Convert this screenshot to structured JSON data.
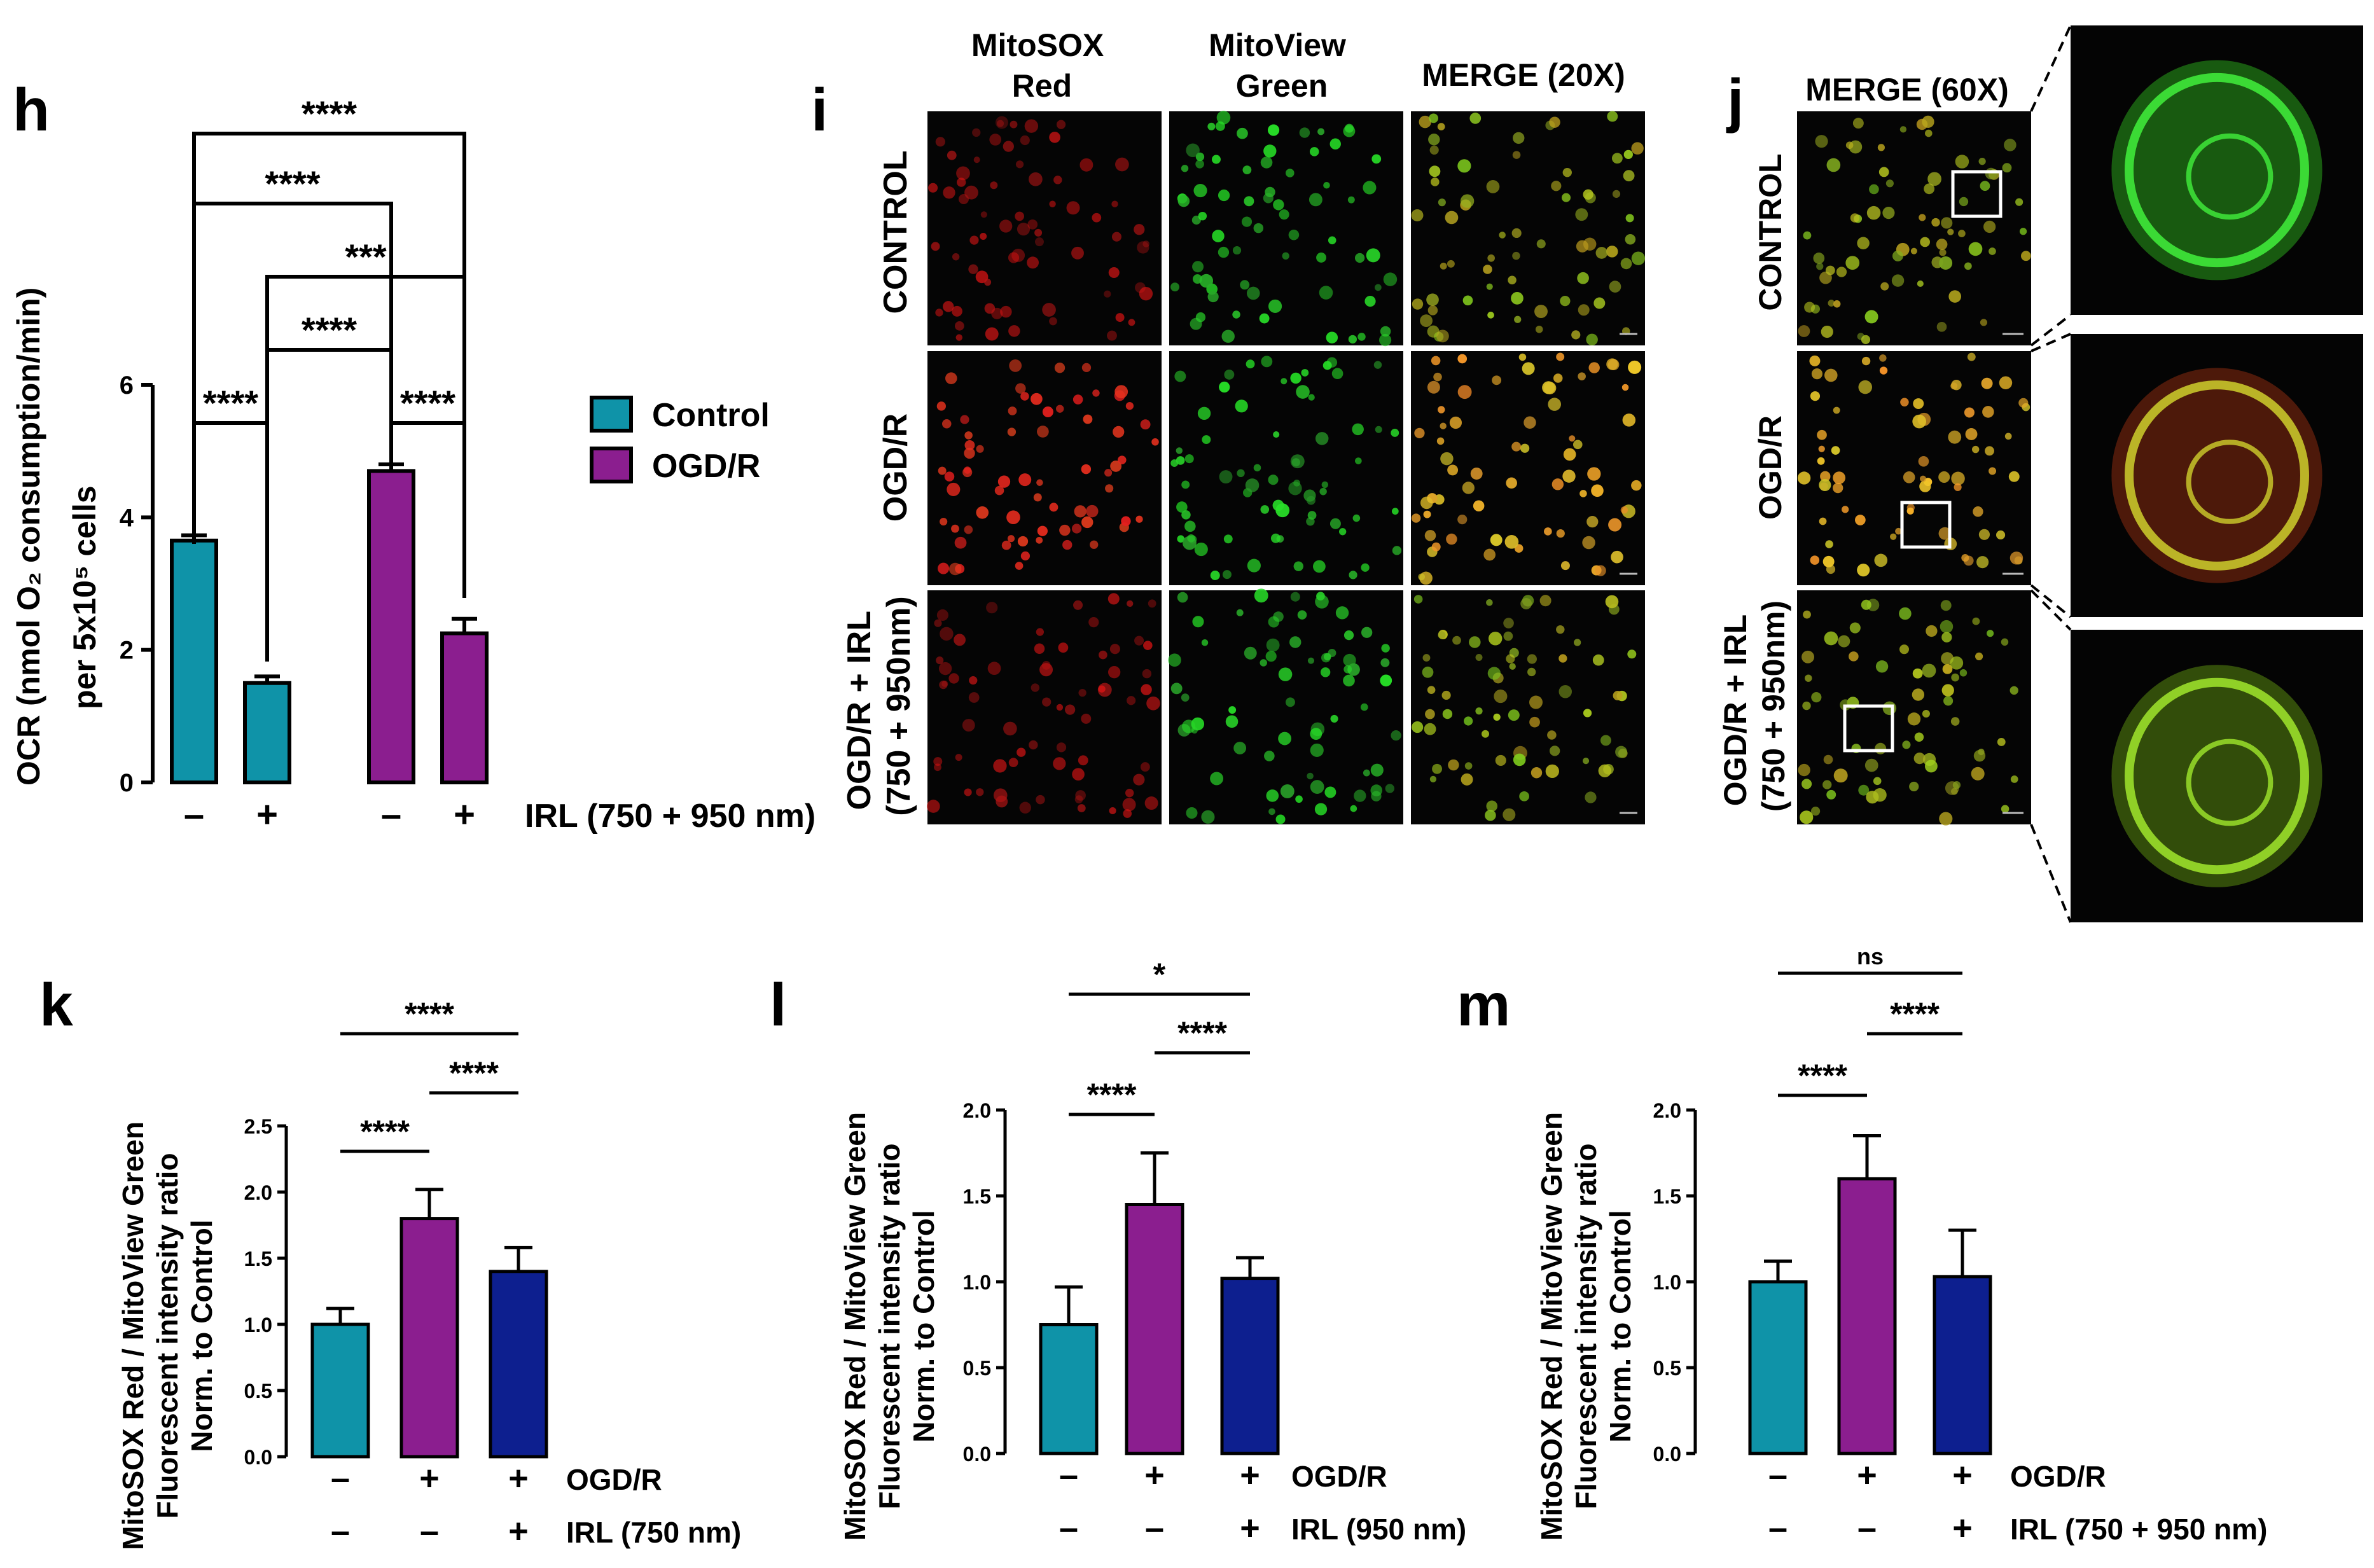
{
  "colors": {
    "control": "#0f93a8",
    "ogdr": "#8b1e8f",
    "irl": "#0d1f8f",
    "axis": "#000000",
    "sig": "#000000"
  },
  "panel_h": {
    "label": "h",
    "ylabel_line1": "OCR (nmol O₂ consumption/min)",
    "ylabel_line2": "per 5x10⁵ cells",
    "xcond_label": "IRL (750 + 950 nm)",
    "xsigns": [
      "–",
      "+",
      "–",
      "+"
    ],
    "legend": [
      "Control",
      "OGD/R"
    ],
    "sig": [
      "****",
      "****",
      "***",
      "****",
      "****",
      "****"
    ]
  },
  "panel_i": {
    "label": "i",
    "col_headers": [
      "MitoSOX Red",
      "MitoView Green",
      "MERGE (20X)"
    ],
    "row_headers": [
      "CONTROL",
      "OGD/R",
      "OGD/R + IRL (750 + 950nm)"
    ]
  },
  "panel_j": {
    "label": "j",
    "col_header": "MERGE (60X)",
    "row_headers": [
      "CONTROL",
      "OGD/R",
      "OGD/R + IRL (750 + 950nm)"
    ]
  },
  "panel_k": {
    "label": "k",
    "ylabel": [
      "MitoSOX Red / MitoView Green",
      "Fluorescent intensity ratio",
      "Norm. to Control"
    ],
    "row1_signs": [
      "–",
      "+",
      "+"
    ],
    "row1_label": "OGD/R",
    "row2_signs": [
      "–",
      "–",
      "+"
    ],
    "row2_label": "IRL (750 nm)",
    "sig": [
      "****",
      "****",
      "****"
    ]
  },
  "panel_l": {
    "label": "l",
    "ylabel": [
      "MitoSOX Red / MitoView Green",
      "Fluorescent intensity ratio",
      "Norm. to Control"
    ],
    "row1_signs": [
      "–",
      "+",
      "+"
    ],
    "row1_label": "OGD/R",
    "row2_signs": [
      "–",
      "–",
      "+"
    ],
    "row2_label": "IRL (950 nm)",
    "sig": [
      "*",
      "****",
      "****"
    ]
  },
  "panel_m": {
    "label": "m",
    "ylabel": [
      "MitoSOX Red / MitoView Green",
      "Fluorescent intensity ratio",
      "Norm. to Control"
    ],
    "row1_signs": [
      "–",
      "+",
      "+"
    ],
    "row1_label": "OGD/R",
    "row2_signs": [
      "–",
      "–",
      "+"
    ],
    "row2_label": "IRL (750 + 950 nm)",
    "sig": [
      "ns",
      "****",
      "****"
    ]
  },
  "chart_data": [
    {
      "panel": "h",
      "type": "bar",
      "categories": [
        "–",
        "+",
        "–",
        "+"
      ],
      "groups": [
        "Control",
        "OGD/R"
      ],
      "values": [
        3.65,
        1.5,
        4.7,
        2.25
      ],
      "errors": [
        0.08,
        0.1,
        0.1,
        0.22
      ],
      "ylim": [
        0,
        6
      ],
      "yticks": [
        0,
        2,
        4,
        6
      ],
      "ylabel": "OCR (nmol O₂ consumption/min) per 5x10⁵ cells",
      "xlabel": "IRL (750 + 950 nm)"
    },
    {
      "panel": "k",
      "type": "bar",
      "values": [
        1.0,
        1.8,
        1.4
      ],
      "errors": [
        0.12,
        0.22,
        0.18
      ],
      "ylim": [
        0,
        2.5
      ],
      "yticks": [
        0.0,
        0.5,
        1.0,
        1.5,
        2.0,
        2.5
      ],
      "ylabel": "MitoSOX Red / MitoView Green Fluorescent intensity ratio Norm. to Control"
    },
    {
      "panel": "l",
      "type": "bar",
      "values": [
        0.75,
        1.45,
        1.02
      ],
      "errors": [
        0.22,
        0.3,
        0.12
      ],
      "ylim": [
        0,
        2.0
      ],
      "yticks": [
        0.0,
        0.5,
        1.0,
        1.5,
        2.0
      ],
      "ylabel": "MitoSOX Red / MitoView Green Fluorescent intensity ratio Norm. to Control"
    },
    {
      "panel": "m",
      "type": "bar",
      "values": [
        1.0,
        1.6,
        1.03
      ],
      "errors": [
        0.12,
        0.25,
        0.27
      ],
      "ylim": [
        0,
        2.0
      ],
      "yticks": [
        0.0,
        0.5,
        1.0,
        1.5,
        2.0
      ],
      "ylabel": "MitoSOX Red / MitoView Green Fluorescent intensity ratio Norm. to Control"
    }
  ]
}
